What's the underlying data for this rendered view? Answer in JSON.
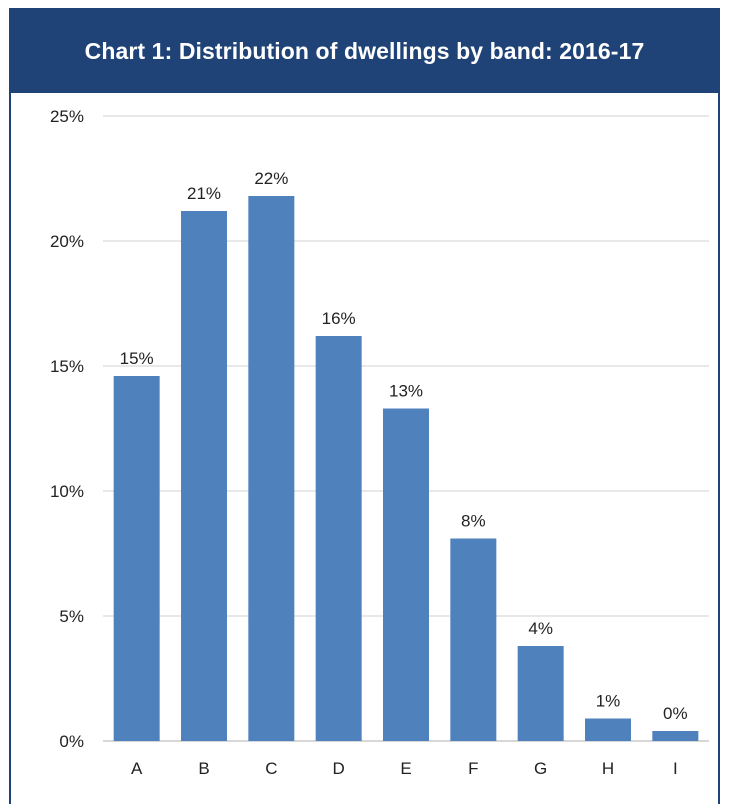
{
  "chart_data": {
    "type": "bar",
    "title": "Chart 1: Distribution of dwellings by band: 2016-17",
    "categories": [
      "A",
      "B",
      "C",
      "D",
      "E",
      "F",
      "G",
      "H",
      "I"
    ],
    "values": [
      14.6,
      21.2,
      21.8,
      16.2,
      13.3,
      8.1,
      3.8,
      0.9,
      0.4
    ],
    "data_labels": [
      "15%",
      "21%",
      "22%",
      "16%",
      "13%",
      "8%",
      "4%",
      "1%",
      "0%"
    ],
    "ylim": [
      0,
      25
    ],
    "yticks": [
      {
        "value": 0,
        "label": "0%"
      },
      {
        "value": 5,
        "label": "5%"
      },
      {
        "value": 10,
        "label": "10%"
      },
      {
        "value": 15,
        "label": "15%"
      },
      {
        "value": 20,
        "label": "20%"
      },
      {
        "value": 25,
        "label": "25%"
      }
    ],
    "grid": true,
    "xlabel": "",
    "ylabel": "",
    "colors": {
      "bar": "#4f81bd",
      "header": "#1f4277",
      "grid": "#d9d9d9"
    }
  }
}
